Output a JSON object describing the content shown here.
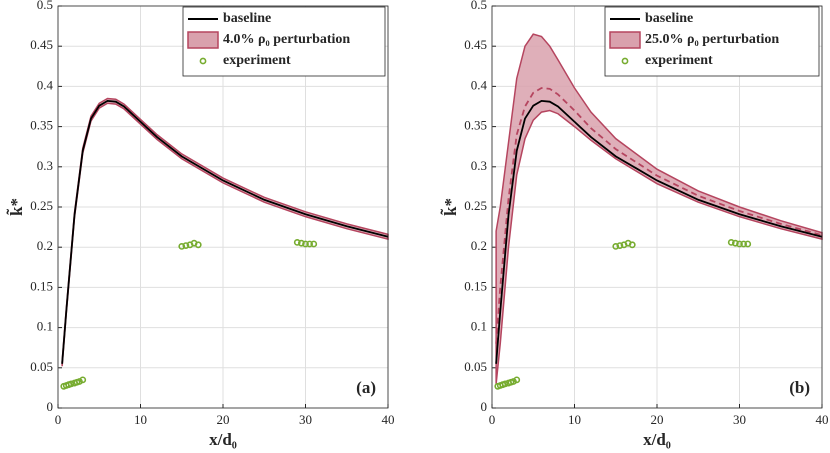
{
  "chart_data": [
    {
      "type": "line",
      "panel_label": "(a)",
      "xlabel": "x/d₀",
      "ylabel": "k̃*",
      "xlim": [
        0,
        40
      ],
      "ylim": [
        0,
        0.5
      ],
      "xticks": [
        0,
        10,
        20,
        30,
        40
      ],
      "yticks": [
        0,
        0.05,
        0.1,
        0.15,
        0.2,
        0.25,
        0.3,
        0.35,
        0.4,
        0.45,
        0.5
      ],
      "grid": true,
      "legend": "upper right",
      "x": [
        0.5,
        1,
        2,
        3,
        4,
        5,
        6,
        7,
        8,
        10,
        12,
        15,
        20,
        25,
        30,
        35,
        40
      ],
      "series": [
        {
          "name": "baseline",
          "color": "#000000",
          "values": [
            0.055,
            0.12,
            0.24,
            0.32,
            0.36,
            0.376,
            0.382,
            0.381,
            0.375,
            0.356,
            0.337,
            0.313,
            0.283,
            0.259,
            0.241,
            0.226,
            0.213
          ]
        }
      ],
      "band": {
        "name": "4.0% ρ₀ perturbation",
        "color": "#d9a1ad",
        "edge": "#b5455f",
        "upper": [
          0.058,
          0.123,
          0.243,
          0.323,
          0.363,
          0.379,
          0.385,
          0.384,
          0.378,
          0.359,
          0.34,
          0.316,
          0.286,
          0.262,
          0.244,
          0.229,
          0.216
        ],
        "lower": [
          0.052,
          0.117,
          0.237,
          0.317,
          0.357,
          0.373,
          0.379,
          0.378,
          0.372,
          0.353,
          0.334,
          0.31,
          0.28,
          0.256,
          0.238,
          0.223,
          0.21
        ]
      },
      "scatter": {
        "name": "experiment",
        "color": "#77ac30",
        "x": [
          0.7,
          1,
          1.3,
          1.6,
          2,
          2.3,
          2.6,
          3,
          15,
          15.5,
          16,
          16.5,
          17,
          29,
          29.5,
          30,
          30.5,
          31
        ],
        "y": [
          0.027,
          0.028,
          0.029,
          0.03,
          0.031,
          0.032,
          0.033,
          0.035,
          0.201,
          0.202,
          0.203,
          0.205,
          0.203,
          0.206,
          0.205,
          0.204,
          0.204,
          0.204
        ]
      }
    },
    {
      "type": "line",
      "panel_label": "(b)",
      "xlabel": "x/d₀",
      "ylabel": "k̃*",
      "xlim": [
        0,
        40
      ],
      "ylim": [
        0,
        0.5
      ],
      "xticks": [
        0,
        10,
        20,
        30,
        40
      ],
      "yticks": [
        0,
        0.05,
        0.1,
        0.15,
        0.2,
        0.25,
        0.3,
        0.35,
        0.4,
        0.45,
        0.5
      ],
      "grid": true,
      "legend": "upper right",
      "x": [
        0.5,
        1,
        2,
        3,
        4,
        5,
        6,
        7,
        8,
        10,
        12,
        15,
        20,
        25,
        30,
        35,
        40
      ],
      "series": [
        {
          "name": "baseline",
          "color": "#000000",
          "values": [
            0.055,
            0.12,
            0.24,
            0.32,
            0.36,
            0.376,
            0.382,
            0.381,
            0.375,
            0.356,
            0.337,
            0.313,
            0.283,
            0.259,
            0.241,
            0.226,
            0.213
          ]
        },
        {
          "color": "#b5455f",
          "dash": true,
          "values": [
            0.08,
            0.15,
            0.26,
            0.34,
            0.375,
            0.392,
            0.398,
            0.397,
            0.39,
            0.37,
            0.348,
            0.322,
            0.289,
            0.264,
            0.245,
            0.229,
            0.215
          ]
        }
      ],
      "band": {
        "name": "25.0% ρ₀ perturbation",
        "color": "#d9a1ad",
        "edge": "#b5455f",
        "upper": [
          0.22,
          0.25,
          0.33,
          0.41,
          0.45,
          0.465,
          0.462,
          0.45,
          0.433,
          0.398,
          0.368,
          0.335,
          0.297,
          0.27,
          0.25,
          0.233,
          0.218
        ],
        "lower": [
          0.03,
          0.08,
          0.2,
          0.29,
          0.335,
          0.358,
          0.368,
          0.37,
          0.366,
          0.35,
          0.333,
          0.31,
          0.279,
          0.256,
          0.238,
          0.223,
          0.21
        ]
      },
      "scatter": {
        "name": "experiment",
        "color": "#77ac30",
        "x": [
          0.7,
          1,
          1.3,
          1.6,
          2,
          2.3,
          2.6,
          3,
          15,
          15.5,
          16,
          16.5,
          17,
          29,
          29.5,
          30,
          30.5,
          31
        ],
        "y": [
          0.027,
          0.028,
          0.029,
          0.03,
          0.031,
          0.032,
          0.033,
          0.035,
          0.201,
          0.202,
          0.203,
          0.205,
          0.203,
          0.206,
          0.205,
          0.204,
          0.204,
          0.204
        ]
      }
    }
  ]
}
